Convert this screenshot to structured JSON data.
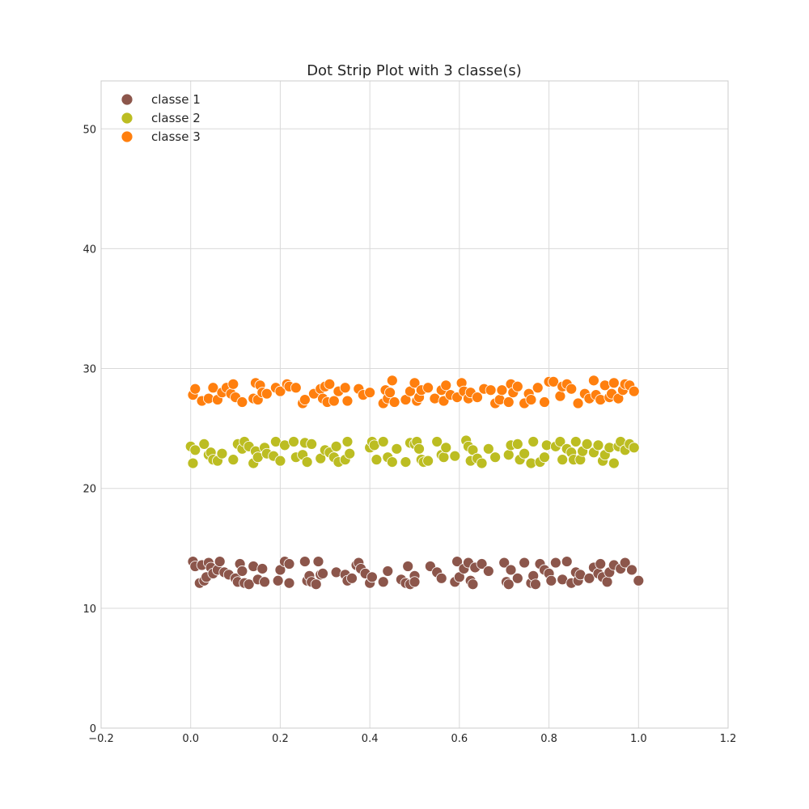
{
  "chart_data": {
    "type": "scatter",
    "title": "Dot Strip Plot with 3 classe(s)",
    "xlabel": "",
    "ylabel": "",
    "xlim": [
      -0.2,
      1.2
    ],
    "ylim": [
      0,
      54
    ],
    "x_ticks": [
      "−0.2",
      "0.0",
      "0.2",
      "0.4",
      "0.6",
      "0.8",
      "1.0",
      "1.2"
    ],
    "x_tick_values": [
      -0.2,
      0.0,
      0.2,
      0.4,
      0.6,
      0.8,
      1.0,
      1.2
    ],
    "y_ticks": [
      "0",
      "10",
      "20",
      "30",
      "40",
      "50"
    ],
    "y_tick_values": [
      0,
      10,
      20,
      30,
      40,
      50
    ],
    "grid": true,
    "legend_position": "top-left",
    "series": [
      {
        "name": "classe 1",
        "color": "#8c564b",
        "points": [
          [
            0.005,
            13.9
          ],
          [
            0.01,
            13.5
          ],
          [
            0.02,
            12.1
          ],
          [
            0.025,
            13.6
          ],
          [
            0.03,
            12.3
          ],
          [
            0.035,
            12.6
          ],
          [
            0.04,
            13.8
          ],
          [
            0.045,
            13.4
          ],
          [
            0.05,
            12.9
          ],
          [
            0.06,
            13.2
          ],
          [
            0.065,
            13.9
          ],
          [
            0.075,
            13.0
          ],
          [
            0.085,
            12.8
          ],
          [
            0.1,
            12.5
          ],
          [
            0.105,
            12.2
          ],
          [
            0.11,
            13.7
          ],
          [
            0.115,
            13.1
          ],
          [
            0.12,
            12.1
          ],
          [
            0.13,
            12.0
          ],
          [
            0.14,
            13.5
          ],
          [
            0.15,
            12.4
          ],
          [
            0.16,
            13.3
          ],
          [
            0.165,
            12.2
          ],
          [
            0.2,
            13.2
          ],
          [
            0.195,
            12.3
          ],
          [
            0.21,
            13.9
          ],
          [
            0.22,
            13.7
          ],
          [
            0.22,
            12.1
          ],
          [
            0.255,
            13.9
          ],
          [
            0.26,
            12.3
          ],
          [
            0.265,
            12.7
          ],
          [
            0.27,
            12.2
          ],
          [
            0.28,
            12.0
          ],
          [
            0.285,
            13.9
          ],
          [
            0.29,
            12.8
          ],
          [
            0.295,
            12.9
          ],
          [
            0.325,
            13.0
          ],
          [
            0.345,
            12.8
          ],
          [
            0.35,
            12.3
          ],
          [
            0.36,
            12.5
          ],
          [
            0.37,
            13.6
          ],
          [
            0.375,
            13.8
          ],
          [
            0.38,
            13.3
          ],
          [
            0.39,
            12.9
          ],
          [
            0.4,
            12.1
          ],
          [
            0.405,
            12.6
          ],
          [
            0.43,
            12.2
          ],
          [
            0.44,
            13.1
          ],
          [
            0.47,
            12.4
          ],
          [
            0.48,
            12.1
          ],
          [
            0.485,
            13.5
          ],
          [
            0.49,
            12.0
          ],
          [
            0.5,
            12.7
          ],
          [
            0.5,
            12.2
          ],
          [
            0.535,
            13.5
          ],
          [
            0.55,
            13.0
          ],
          [
            0.56,
            12.5
          ],
          [
            0.59,
            12.2
          ],
          [
            0.595,
            13.9
          ],
          [
            0.6,
            12.6
          ],
          [
            0.61,
            13.3
          ],
          [
            0.62,
            13.8
          ],
          [
            0.625,
            12.3
          ],
          [
            0.63,
            12.0
          ],
          [
            0.635,
            13.4
          ],
          [
            0.65,
            13.7
          ],
          [
            0.665,
            13.1
          ],
          [
            0.7,
            13.8
          ],
          [
            0.705,
            12.2
          ],
          [
            0.71,
            12.0
          ],
          [
            0.715,
            13.2
          ],
          [
            0.73,
            12.5
          ],
          [
            0.745,
            13.8
          ],
          [
            0.76,
            12.1
          ],
          [
            0.765,
            12.7
          ],
          [
            0.77,
            12.0
          ],
          [
            0.78,
            13.7
          ],
          [
            0.79,
            13.2
          ],
          [
            0.8,
            12.9
          ],
          [
            0.805,
            12.3
          ],
          [
            0.815,
            13.8
          ],
          [
            0.83,
            12.4
          ],
          [
            0.84,
            13.9
          ],
          [
            0.85,
            12.1
          ],
          [
            0.86,
            13.0
          ],
          [
            0.865,
            12.3
          ],
          [
            0.87,
            12.8
          ],
          [
            0.89,
            12.5
          ],
          [
            0.9,
            13.4
          ],
          [
            0.91,
            12.9
          ],
          [
            0.915,
            13.7
          ],
          [
            0.92,
            12.6
          ],
          [
            0.93,
            12.2
          ],
          [
            0.935,
            13.0
          ],
          [
            0.945,
            13.6
          ],
          [
            0.96,
            13.3
          ],
          [
            0.97,
            13.8
          ],
          [
            0.985,
            13.2
          ],
          [
            1.0,
            12.3
          ]
        ]
      },
      {
        "name": "classe 2",
        "color": "#bcbd22",
        "points": [
          [
            0.0,
            23.5
          ],
          [
            0.005,
            22.1
          ],
          [
            0.01,
            23.2
          ],
          [
            0.03,
            23.7
          ],
          [
            0.04,
            22.8
          ],
          [
            0.045,
            23.0
          ],
          [
            0.05,
            22.4
          ],
          [
            0.06,
            22.3
          ],
          [
            0.07,
            22.9
          ],
          [
            0.095,
            22.4
          ],
          [
            0.105,
            23.7
          ],
          [
            0.115,
            23.3
          ],
          [
            0.12,
            23.9
          ],
          [
            0.13,
            23.5
          ],
          [
            0.14,
            22.1
          ],
          [
            0.145,
            23.1
          ],
          [
            0.15,
            22.6
          ],
          [
            0.165,
            23.4
          ],
          [
            0.17,
            22.9
          ],
          [
            0.185,
            22.7
          ],
          [
            0.19,
            23.9
          ],
          [
            0.2,
            22.3
          ],
          [
            0.21,
            23.6
          ],
          [
            0.23,
            23.9
          ],
          [
            0.235,
            22.6
          ],
          [
            0.25,
            22.8
          ],
          [
            0.255,
            23.8
          ],
          [
            0.26,
            22.2
          ],
          [
            0.27,
            23.7
          ],
          [
            0.29,
            22.5
          ],
          [
            0.3,
            23.2
          ],
          [
            0.31,
            23.0
          ],
          [
            0.32,
            22.6
          ],
          [
            0.325,
            23.5
          ],
          [
            0.33,
            22.2
          ],
          [
            0.345,
            22.4
          ],
          [
            0.35,
            23.9
          ],
          [
            0.355,
            22.9
          ],
          [
            0.4,
            23.4
          ],
          [
            0.405,
            23.9
          ],
          [
            0.41,
            23.6
          ],
          [
            0.415,
            22.4
          ],
          [
            0.43,
            23.9
          ],
          [
            0.44,
            22.6
          ],
          [
            0.45,
            22.2
          ],
          [
            0.46,
            23.3
          ],
          [
            0.48,
            22.2
          ],
          [
            0.49,
            23.8
          ],
          [
            0.5,
            23.7
          ],
          [
            0.505,
            23.9
          ],
          [
            0.51,
            23.3
          ],
          [
            0.515,
            22.4
          ],
          [
            0.52,
            22.2
          ],
          [
            0.53,
            22.3
          ],
          [
            0.55,
            23.9
          ],
          [
            0.56,
            22.8
          ],
          [
            0.565,
            22.6
          ],
          [
            0.57,
            23.4
          ],
          [
            0.59,
            22.7
          ],
          [
            0.615,
            24.0
          ],
          [
            0.62,
            23.5
          ],
          [
            0.625,
            22.3
          ],
          [
            0.63,
            23.2
          ],
          [
            0.64,
            22.5
          ],
          [
            0.65,
            22.1
          ],
          [
            0.665,
            23.3
          ],
          [
            0.68,
            22.6
          ],
          [
            0.71,
            22.8
          ],
          [
            0.715,
            23.6
          ],
          [
            0.73,
            23.7
          ],
          [
            0.735,
            22.4
          ],
          [
            0.745,
            22.9
          ],
          [
            0.76,
            22.1
          ],
          [
            0.765,
            23.9
          ],
          [
            0.78,
            22.2
          ],
          [
            0.79,
            22.6
          ],
          [
            0.795,
            23.6
          ],
          [
            0.815,
            23.5
          ],
          [
            0.825,
            23.9
          ],
          [
            0.83,
            22.4
          ],
          [
            0.84,
            23.3
          ],
          [
            0.85,
            23.0
          ],
          [
            0.855,
            22.4
          ],
          [
            0.86,
            23.9
          ],
          [
            0.87,
            22.4
          ],
          [
            0.875,
            23.1
          ],
          [
            0.885,
            23.7
          ],
          [
            0.9,
            23.0
          ],
          [
            0.91,
            23.6
          ],
          [
            0.92,
            22.3
          ],
          [
            0.925,
            22.8
          ],
          [
            0.935,
            23.4
          ],
          [
            0.945,
            22.1
          ],
          [
            0.955,
            23.5
          ],
          [
            0.96,
            23.9
          ],
          [
            0.97,
            23.2
          ],
          [
            0.98,
            23.7
          ],
          [
            0.99,
            23.4
          ]
        ]
      },
      {
        "name": "classe 3",
        "color": "#ff7f0e",
        "points": [
          [
            0.005,
            27.8
          ],
          [
            0.01,
            28.3
          ],
          [
            0.025,
            27.3
          ],
          [
            0.04,
            27.5
          ],
          [
            0.05,
            28.4
          ],
          [
            0.06,
            27.4
          ],
          [
            0.07,
            28.0
          ],
          [
            0.08,
            28.4
          ],
          [
            0.09,
            27.9
          ],
          [
            0.095,
            28.7
          ],
          [
            0.1,
            27.6
          ],
          [
            0.115,
            27.2
          ],
          [
            0.14,
            27.5
          ],
          [
            0.145,
            28.8
          ],
          [
            0.15,
            27.4
          ],
          [
            0.155,
            28.6
          ],
          [
            0.16,
            28.0
          ],
          [
            0.17,
            27.9
          ],
          [
            0.19,
            28.4
          ],
          [
            0.2,
            28.1
          ],
          [
            0.215,
            28.7
          ],
          [
            0.22,
            28.5
          ],
          [
            0.235,
            28.4
          ],
          [
            0.25,
            27.1
          ],
          [
            0.255,
            27.4
          ],
          [
            0.275,
            27.9
          ],
          [
            0.29,
            28.3
          ],
          [
            0.295,
            27.5
          ],
          [
            0.3,
            28.5
          ],
          [
            0.305,
            27.2
          ],
          [
            0.31,
            28.7
          ],
          [
            0.32,
            27.3
          ],
          [
            0.33,
            28.1
          ],
          [
            0.345,
            28.4
          ],
          [
            0.35,
            27.3
          ],
          [
            0.375,
            28.3
          ],
          [
            0.385,
            27.8
          ],
          [
            0.4,
            28.0
          ],
          [
            0.43,
            27.1
          ],
          [
            0.435,
            28.2
          ],
          [
            0.44,
            27.5
          ],
          [
            0.445,
            28.0
          ],
          [
            0.45,
            29.0
          ],
          [
            0.455,
            27.2
          ],
          [
            0.48,
            27.4
          ],
          [
            0.49,
            28.1
          ],
          [
            0.5,
            28.8
          ],
          [
            0.505,
            27.3
          ],
          [
            0.51,
            27.6
          ],
          [
            0.515,
            28.2
          ],
          [
            0.53,
            28.4
          ],
          [
            0.545,
            27.5
          ],
          [
            0.56,
            28.2
          ],
          [
            0.565,
            27.3
          ],
          [
            0.57,
            28.6
          ],
          [
            0.58,
            27.8
          ],
          [
            0.595,
            27.6
          ],
          [
            0.605,
            28.8
          ],
          [
            0.61,
            28.1
          ],
          [
            0.62,
            27.5
          ],
          [
            0.625,
            28.0
          ],
          [
            0.64,
            27.6
          ],
          [
            0.655,
            28.3
          ],
          [
            0.67,
            28.2
          ],
          [
            0.68,
            27.1
          ],
          [
            0.69,
            27.4
          ],
          [
            0.695,
            28.2
          ],
          [
            0.71,
            27.2
          ],
          [
            0.715,
            28.7
          ],
          [
            0.72,
            28.0
          ],
          [
            0.73,
            28.5
          ],
          [
            0.745,
            27.1
          ],
          [
            0.755,
            27.9
          ],
          [
            0.76,
            27.4
          ],
          [
            0.775,
            28.4
          ],
          [
            0.79,
            27.2
          ],
          [
            0.8,
            28.9
          ],
          [
            0.81,
            28.9
          ],
          [
            0.825,
            27.7
          ],
          [
            0.83,
            28.5
          ],
          [
            0.84,
            28.7
          ],
          [
            0.85,
            28.3
          ],
          [
            0.865,
            27.1
          ],
          [
            0.88,
            27.9
          ],
          [
            0.89,
            27.5
          ],
          [
            0.9,
            29.0
          ],
          [
            0.905,
            27.8
          ],
          [
            0.915,
            27.4
          ],
          [
            0.925,
            28.6
          ],
          [
            0.935,
            27.6
          ],
          [
            0.94,
            27.9
          ],
          [
            0.945,
            28.8
          ],
          [
            0.955,
            27.5
          ],
          [
            0.965,
            28.2
          ],
          [
            0.97,
            28.7
          ],
          [
            0.98,
            28.6
          ],
          [
            0.99,
            28.1
          ]
        ]
      }
    ]
  }
}
